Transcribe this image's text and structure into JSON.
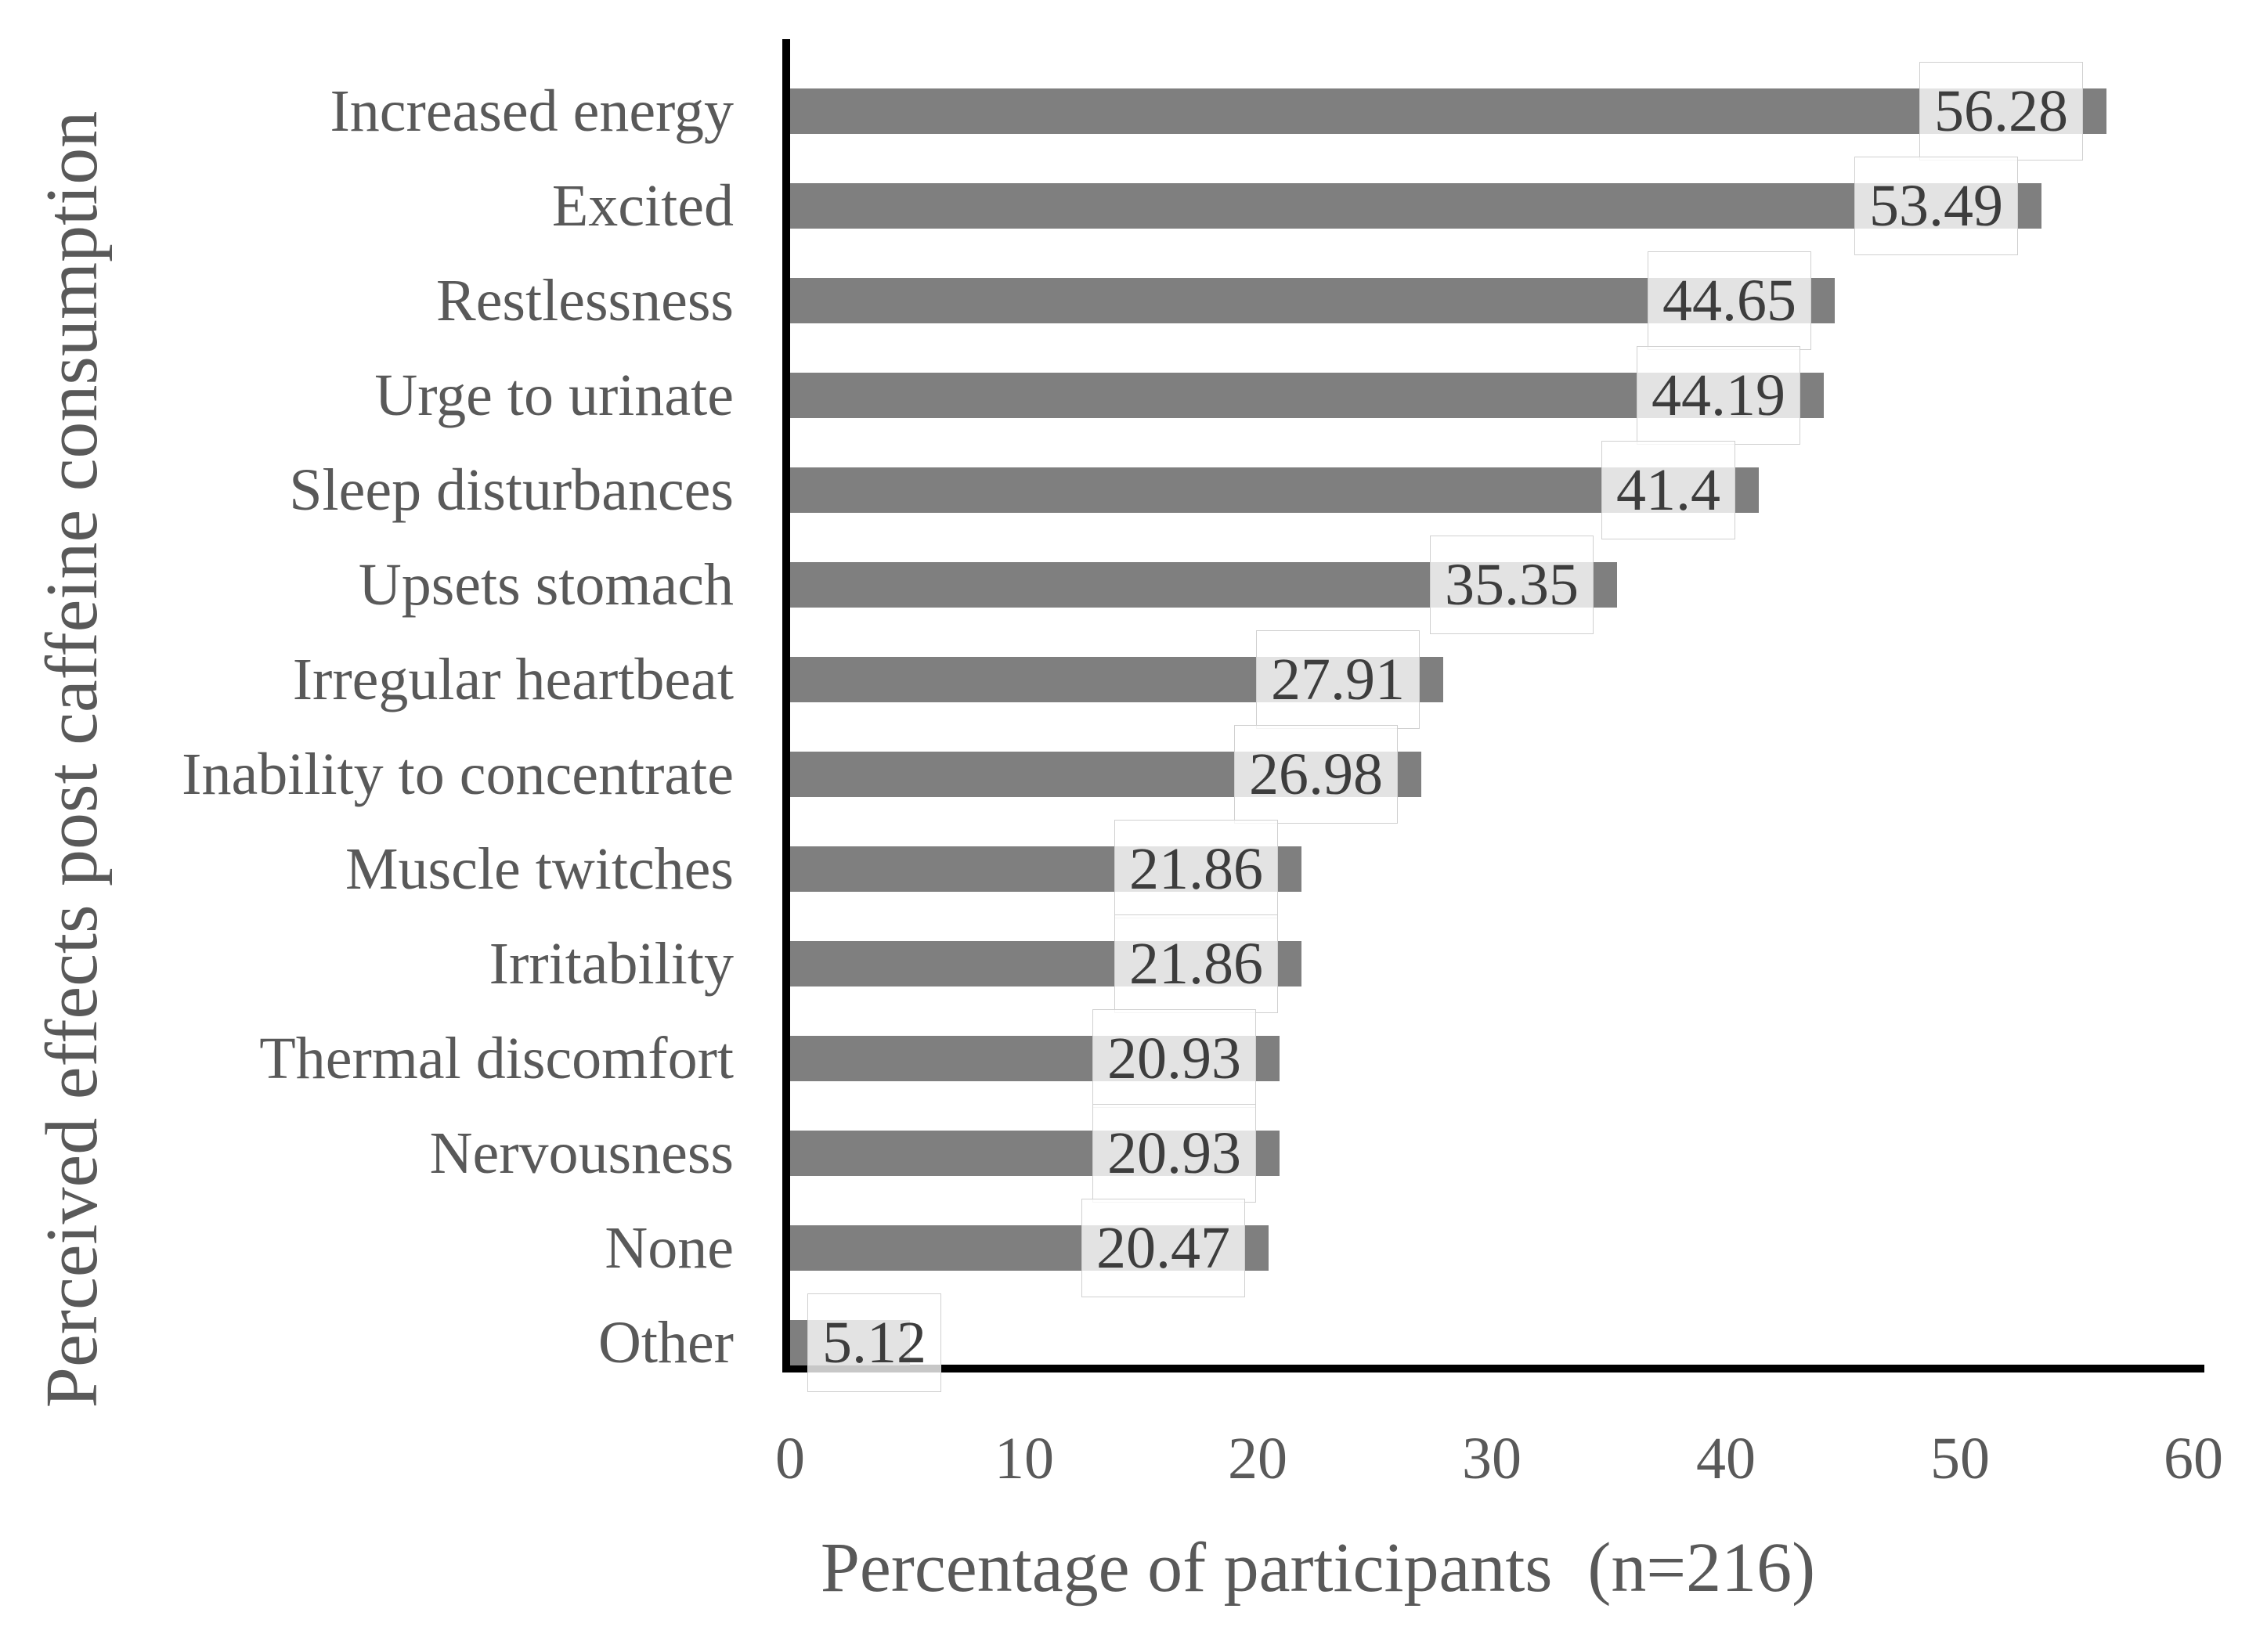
{
  "chart_data": {
    "type": "bar",
    "orientation": "horizontal",
    "title": "",
    "xlabel": "Percentage of participants  (n=216)",
    "ylabel": "Perceived effects post caffeine consumption",
    "categories": [
      "Increased energy",
      "Excited",
      "Restlessness",
      "Urge to urinate",
      "Sleep disturbances",
      "Upsets stomach",
      "Irregular heartbeat",
      "Inability to concentrate",
      "Muscle twitches",
      "Irritability",
      "Thermal discomfort",
      "Nervousness",
      "None",
      "Other"
    ],
    "values": [
      56.28,
      53.49,
      44.65,
      44.19,
      41.4,
      35.35,
      27.91,
      26.98,
      21.86,
      21.86,
      20.93,
      20.93,
      20.47,
      5.12
    ],
    "value_labels": [
      "56.28",
      "53.49",
      "44.65",
      "44.19",
      "41.4",
      "35.35",
      "27.91",
      "26.98",
      "21.86",
      "21.86",
      "20.93",
      "20.93",
      "20.47",
      "5.12"
    ],
    "xlim": [
      0,
      60
    ],
    "xticks": [
      0,
      10,
      20,
      30,
      40,
      50,
      60
    ],
    "grid": false,
    "legend": null,
    "bar_color": "#7f7f7f",
    "axis_color": "#000000",
    "text_color": "#595959",
    "value_text_color": "#3d3d3d",
    "value_box_border_color": "#d0d0d0"
  }
}
